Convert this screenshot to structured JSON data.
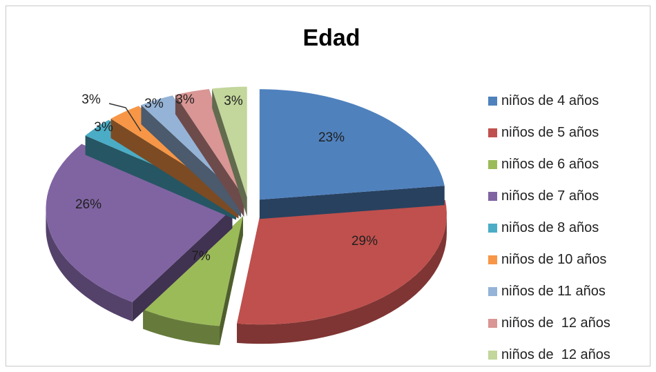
{
  "chart_data": {
    "type": "pie",
    "title": "Edad",
    "categories": [
      "niños de 4 años",
      "niños de 5 años",
      "niños de 6 años",
      "niños de 7 años",
      "niños de 8 años",
      "niños de 10 años",
      "niños de 11 años",
      "niños de  12 años",
      "niños de  12 años"
    ],
    "values": [
      23,
      29,
      7,
      26,
      3,
      3,
      3,
      3,
      3
    ],
    "data_labels": [
      "23%",
      "29%",
      "7%",
      "26%",
      "3%",
      "3%",
      "3%",
      "3%",
      "3%"
    ],
    "colors": [
      "#4F81BD",
      "#C0504D",
      "#9BBB59",
      "#8064A2",
      "#4BACC6",
      "#F79646",
      "#95B3D7",
      "#D99694",
      "#C3D69B"
    ],
    "style": "exploded 3D pie",
    "legend_position": "right"
  }
}
